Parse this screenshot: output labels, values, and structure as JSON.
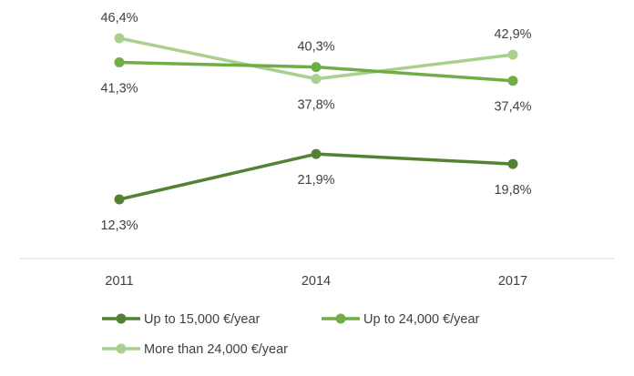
{
  "chart_data": {
    "type": "line",
    "x": [
      "2011",
      "2014",
      "2017"
    ],
    "series": [
      {
        "name": "Up to 15,000 €/year",
        "values": [
          12.3,
          21.9,
          19.8
        ],
        "labels": [
          "12,3%",
          "21,9%",
          "19,8%"
        ],
        "color": "#548235"
      },
      {
        "name": "Up to 24,000 €/year",
        "values": [
          41.3,
          40.3,
          37.4
        ],
        "labels": [
          "41,3%",
          "40,3%",
          "37,4%"
        ],
        "color": "#70ad47"
      },
      {
        "name": "More than 24,000 €/year",
        "values": [
          46.4,
          37.8,
          42.9
        ],
        "labels": [
          "46,4%",
          "37,8%",
          "42,9%"
        ],
        "color": "#a9d08e"
      }
    ],
    "title": "",
    "xlabel": "",
    "ylabel": "",
    "ylim": [
      0,
      50
    ],
    "grid": false,
    "legend": "bottom",
    "axis_color": "#d9d9d9"
  }
}
